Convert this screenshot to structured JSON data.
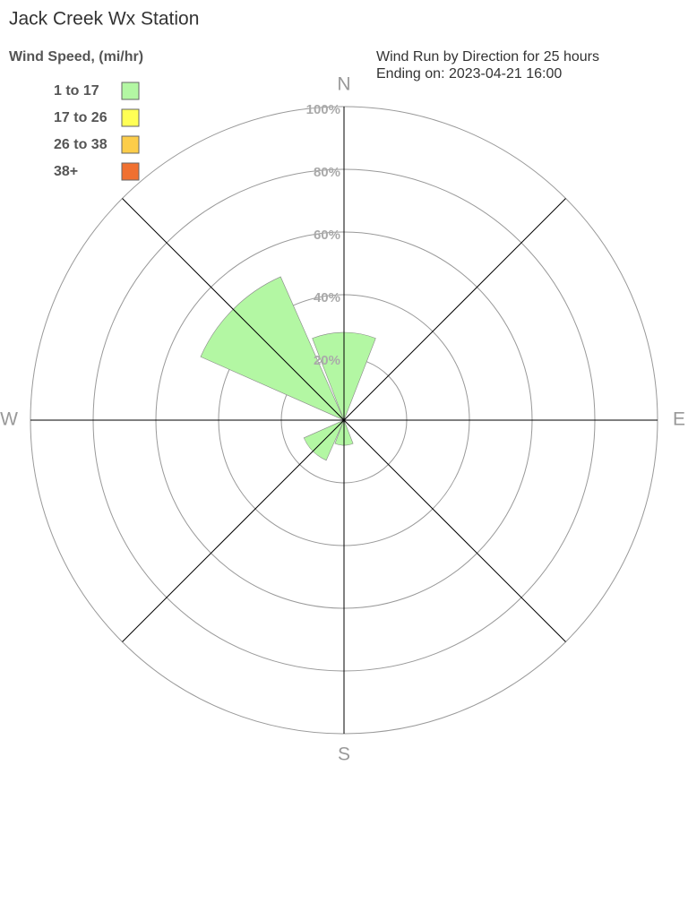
{
  "chart_data": {
    "type": "windrose",
    "title": "Jack Creek Wx Station",
    "subtitle": [
      "Wind Run by Direction for 25 hours",
      "Ending on: 2023-04-21 16:00"
    ],
    "legend_title": "Wind Speed, (mi/hr)",
    "categories": [
      "N",
      null,
      "E",
      null,
      "S",
      null,
      "W",
      null
    ],
    "series": [
      {
        "name": "1 to 17",
        "color": "#b3f7a3",
        "values": [
          28,
          0,
          0,
          0,
          8,
          14,
          0,
          50
        ]
      },
      {
        "name": "17 to 26",
        "color": "#ffff55",
        "values": [
          0,
          0,
          0,
          0,
          0,
          0,
          0,
          0
        ]
      },
      {
        "name": "26 to 38",
        "color": "#fccd4a",
        "values": [
          0,
          0,
          0,
          0,
          0,
          0,
          0,
          0
        ]
      },
      {
        "name": "38+",
        "color": "#f07030",
        "values": [
          0,
          0,
          0,
          0,
          0,
          0,
          0,
          0
        ]
      }
    ],
    "rlim": [
      0,
      100
    ],
    "rticks": [
      {
        "value": 20,
        "label": "20%"
      },
      {
        "value": 40,
        "label": "40%"
      },
      {
        "value": 60,
        "label": "60%"
      },
      {
        "value": 80,
        "label": "80%"
      },
      {
        "value": 100,
        "label": "100%"
      }
    ],
    "grid": true
  }
}
